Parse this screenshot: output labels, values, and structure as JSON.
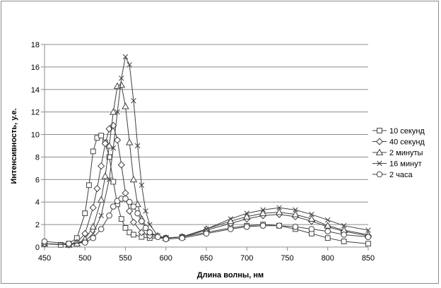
{
  "chart_data": {
    "type": "line",
    "title": "",
    "xlabel": "Длина волны, нм",
    "ylabel": "Интенсивность, у.е.",
    "xlim": [
      450,
      850
    ],
    "ylim": [
      0,
      18
    ],
    "xticks": [
      450,
      500,
      550,
      600,
      650,
      700,
      750,
      800,
      850
    ],
    "yticks": [
      0,
      2,
      4,
      6,
      8,
      10,
      12,
      14,
      16,
      18
    ],
    "grid": "horizontal",
    "legend_position": "right",
    "series": [
      {
        "name": "10 секунд",
        "marker": "square",
        "x": [
          450,
          470,
          480,
          490,
          500,
          505,
          510,
          515,
          520,
          525,
          530,
          535,
          540,
          545,
          550,
          555,
          560,
          570,
          580,
          600,
          620,
          650,
          680,
          700,
          720,
          740,
          760,
          780,
          800,
          820,
          850
        ],
        "y": [
          0.3,
          0.2,
          0.3,
          0.8,
          3.0,
          5.5,
          8.5,
          9.7,
          9.9,
          9.3,
          8.0,
          5.8,
          3.8,
          2.5,
          1.7,
          1.3,
          1.1,
          0.9,
          0.8,
          0.8,
          0.9,
          1.3,
          1.7,
          1.9,
          2.0,
          1.9,
          1.6,
          1.2,
          0.8,
          0.5,
          0.3
        ]
      },
      {
        "name": "40 секунд",
        "marker": "diamond",
        "x": [
          450,
          480,
          490,
          500,
          510,
          515,
          520,
          525,
          530,
          535,
          540,
          545,
          550,
          555,
          560,
          570,
          580,
          600,
          620,
          650,
          680,
          700,
          720,
          740,
          760,
          780,
          800,
          820,
          850
        ],
        "y": [
          0.3,
          0.2,
          0.4,
          1.2,
          3.5,
          5.2,
          7.2,
          9.2,
          10.5,
          10.8,
          9.5,
          7.3,
          4.8,
          3.2,
          2.2,
          1.3,
          1.0,
          0.8,
          0.9,
          1.5,
          2.1,
          2.5,
          2.8,
          2.9,
          2.7,
          2.3,
          1.8,
          1.4,
          1.0
        ]
      },
      {
        "name": "2 минуты",
        "marker": "triangle",
        "x": [
          450,
          480,
          490,
          500,
          510,
          520,
          525,
          530,
          535,
          540,
          545,
          550,
          555,
          560,
          565,
          570,
          580,
          590,
          600,
          620,
          650,
          680,
          700,
          720,
          740,
          760,
          780,
          800,
          820,
          850
        ],
        "y": [
          0.3,
          0.2,
          0.3,
          0.7,
          1.8,
          4.2,
          6.3,
          9.0,
          12.0,
          14.3,
          14.4,
          12.5,
          9.3,
          6.0,
          3.8,
          2.5,
          1.3,
          1.0,
          0.8,
          0.9,
          1.6,
          2.3,
          2.7,
          3.0,
          3.1,
          2.9,
          2.5,
          1.9,
          1.5,
          1.1
        ]
      },
      {
        "name": "16 минут",
        "marker": "x",
        "x": [
          450,
          480,
          500,
          510,
          520,
          530,
          535,
          540,
          545,
          550,
          555,
          560,
          565,
          570,
          575,
          580,
          590,
          600,
          620,
          650,
          680,
          700,
          720,
          740,
          760,
          780,
          800,
          820,
          850
        ],
        "y": [
          0.3,
          0.2,
          0.5,
          1.2,
          2.8,
          6.0,
          8.8,
          12.0,
          15.0,
          16.9,
          16.2,
          13.0,
          9.0,
          5.5,
          3.2,
          2.0,
          1.0,
          0.8,
          0.9,
          1.6,
          2.5,
          3.0,
          3.3,
          3.5,
          3.3,
          2.9,
          2.4,
          1.9,
          1.5
        ]
      },
      {
        "name": "2 часа",
        "marker": "circle",
        "x": [
          450,
          480,
          500,
          510,
          520,
          530,
          535,
          540,
          545,
          550,
          555,
          560,
          565,
          570,
          575,
          580,
          590,
          600,
          620,
          650,
          680,
          700,
          720,
          740,
          760,
          780,
          800,
          820,
          850
        ],
        "y": [
          0.5,
          0.3,
          0.4,
          0.8,
          1.6,
          2.8,
          3.6,
          4.1,
          4.3,
          4.3,
          4.0,
          3.6,
          3.0,
          2.3,
          1.7,
          1.3,
          0.9,
          0.7,
          0.8,
          1.2,
          1.6,
          1.8,
          1.9,
          1.9,
          1.8,
          1.6,
          1.4,
          1.1,
          0.9
        ]
      }
    ]
  }
}
